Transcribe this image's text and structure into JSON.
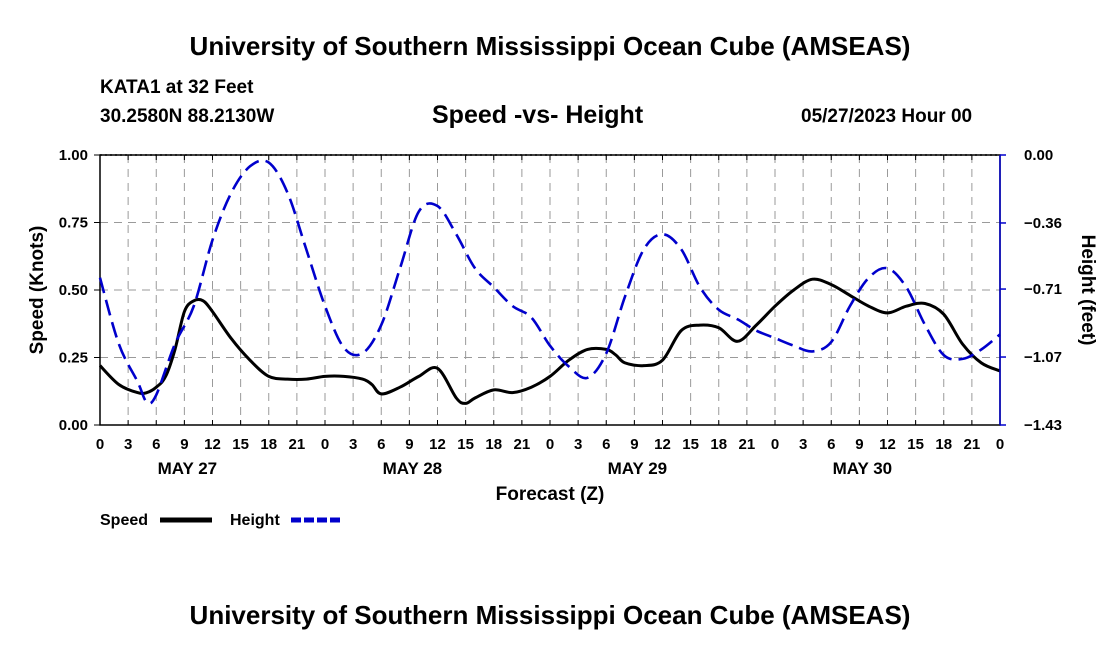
{
  "header": {
    "title": "University of Southern Mississippi Ocean Cube (AMSEAS)",
    "station": "KATA1 at 32 Feet",
    "coords": "30.2580N  88.2130W",
    "subtitle": "Speed -vs- Height",
    "datetime": "05/27/2023 Hour 00"
  },
  "footer": {
    "title": "University of Southern Mississippi Ocean Cube (AMSEAS)"
  },
  "legend": {
    "speed_label": "Speed",
    "height_label": "Height"
  },
  "chart_data": {
    "type": "line",
    "title": "Speed -vs- Height",
    "xlabel": "Forecast (Z)",
    "ylabel_left": "Speed (Knots)",
    "ylabel_right": "Height (feet)",
    "x_range_hours": [
      0,
      96
    ],
    "x_tick_step_hours": 3,
    "x_tick_labels": [
      "0",
      "3",
      "6",
      "9",
      "12",
      "15",
      "18",
      "21",
      "0",
      "3",
      "6",
      "9",
      "12",
      "15",
      "18",
      "21",
      "0",
      "3",
      "6",
      "9",
      "12",
      "15",
      "18",
      "21",
      "0",
      "3",
      "6",
      "9",
      "12",
      "15",
      "18",
      "21",
      "0"
    ],
    "day_labels": [
      {
        "label": "MAY 27",
        "hour": 9
      },
      {
        "label": "MAY 28",
        "hour": 33
      },
      {
        "label": "MAY 29",
        "hour": 57
      },
      {
        "label": "MAY 30",
        "hour": 81
      }
    ],
    "left_axis": {
      "range": [
        0,
        1
      ],
      "ticks": [
        0,
        0.25,
        0.5,
        0.75,
        1
      ],
      "tick_labels": [
        "0.00",
        "0.25",
        "0.50",
        "0.75",
        "1.00"
      ]
    },
    "right_axis": {
      "range": [
        -1.43,
        0
      ],
      "ticks": [
        0,
        -0.36,
        -0.71,
        -1.07,
        -1.43
      ],
      "tick_labels": [
        "0.00",
        "−0.36",
        "−0.71",
        "−1.07",
        "−1.43"
      ]
    },
    "grid": true,
    "series": [
      {
        "name": "Speed",
        "axis": "left",
        "color": "#000000",
        "style": "solid",
        "x": [
          0,
          2,
          4,
          5,
          6,
          7,
          8,
          9,
          10,
          11,
          12,
          14,
          16,
          18,
          20,
          22,
          24,
          26,
          28,
          29,
          30,
          32,
          34,
          36,
          38,
          39,
          40,
          42,
          44,
          46,
          48,
          50,
          52,
          54,
          55,
          56,
          58,
          60,
          62,
          64,
          66,
          68,
          70,
          72,
          74,
          76,
          78,
          80,
          82,
          84,
          86,
          88,
          90,
          92,
          94,
          96
        ],
        "y": [
          0.22,
          0.15,
          0.12,
          0.12,
          0.14,
          0.18,
          0.28,
          0.42,
          0.46,
          0.46,
          0.42,
          0.32,
          0.24,
          0.18,
          0.17,
          0.17,
          0.18,
          0.18,
          0.17,
          0.15,
          0.115,
          0.14,
          0.18,
          0.21,
          0.1,
          0.08,
          0.1,
          0.13,
          0.12,
          0.14,
          0.18,
          0.24,
          0.28,
          0.28,
          0.26,
          0.23,
          0.22,
          0.24,
          0.35,
          0.37,
          0.36,
          0.31,
          0.37,
          0.44,
          0.5,
          0.54,
          0.52,
          0.48,
          0.44,
          0.415,
          0.44,
          0.45,
          0.41,
          0.3,
          0.23,
          0.2
        ]
      },
      {
        "name": "Height",
        "axis": "right",
        "color": "#0000cc",
        "style": "dashed",
        "x": [
          0,
          2,
          4,
          5,
          6,
          8,
          10,
          12,
          14,
          16,
          18,
          20,
          22,
          24,
          26,
          28,
          30,
          32,
          34,
          36,
          38,
          40,
          42,
          44,
          46,
          48,
          50,
          52,
          54,
          56,
          58,
          60,
          62,
          64,
          66,
          68,
          70,
          72,
          74,
          76,
          78,
          80,
          82,
          84,
          86,
          88,
          90,
          92,
          94,
          96
        ],
        "y": [
          -0.65,
          -1.0,
          -1.2,
          -1.31,
          -1.27,
          -1.0,
          -0.8,
          -0.45,
          -0.2,
          -0.06,
          -0.04,
          -0.2,
          -0.5,
          -0.8,
          -1.02,
          -1.05,
          -0.9,
          -0.6,
          -0.3,
          -0.27,
          -0.42,
          -0.6,
          -0.7,
          -0.8,
          -0.86,
          -1.01,
          -1.12,
          -1.18,
          -1.05,
          -0.75,
          -0.5,
          -0.42,
          -0.5,
          -0.7,
          -0.82,
          -0.87,
          -0.93,
          -0.97,
          -1.01,
          -1.04,
          -0.99,
          -0.8,
          -0.65,
          -0.6,
          -0.7,
          -0.9,
          -1.06,
          -1.08,
          -1.03,
          -0.95
        ]
      }
    ]
  }
}
